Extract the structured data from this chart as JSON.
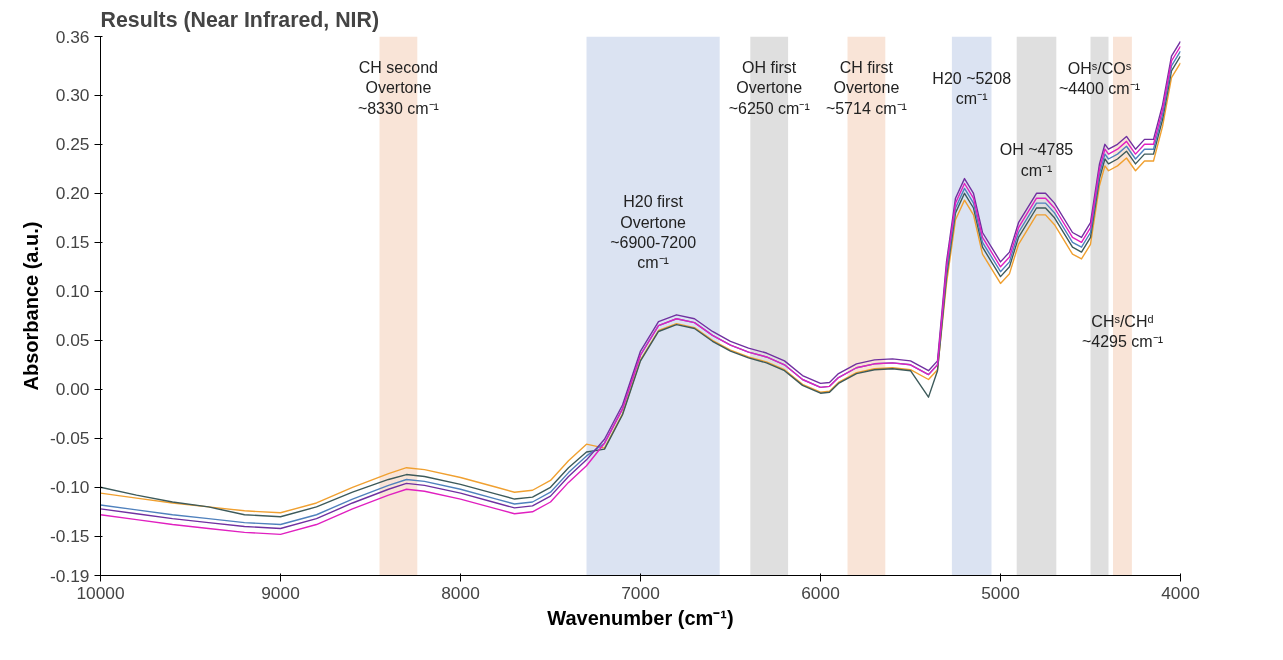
{
  "chart_data": {
    "type": "line",
    "title": "Results (Near Infrared, NIR)",
    "xlabel": "Wavenumber (cm⁻¹)",
    "ylabel": "Absorbance (a.u.)",
    "xlim": [
      10000,
      4000
    ],
    "xticks": [
      10000,
      9000,
      8000,
      7000,
      6000,
      5000,
      4000
    ],
    "ylim": [
      -0.19,
      0.36
    ],
    "yticks": [
      {
        "value": -0.19,
        "label": "-0.19"
      },
      {
        "value": -0.15,
        "label": "-0.15"
      },
      {
        "value": -0.1,
        "label": "-0.10"
      },
      {
        "value": -0.05,
        "label": "-0.05"
      },
      {
        "value": 0,
        "label": "0.00"
      },
      {
        "value": 0.05,
        "label": "0.05"
      },
      {
        "value": 0.1,
        "label": "0.10"
      },
      {
        "value": 0.15,
        "label": "0.15"
      },
      {
        "value": 0.2,
        "label": "0.20"
      },
      {
        "value": 0.25,
        "label": "0.25"
      },
      {
        "value": 0.3,
        "label": "0.30"
      },
      {
        "value": 0.36,
        "label": "0.36"
      }
    ],
    "grid": false,
    "marker": "none",
    "line_style": "solid",
    "x": [
      10000,
      9800,
      9600,
      9400,
      9200,
      9000,
      8800,
      8600,
      8400,
      8300,
      8200,
      8000,
      7800,
      7700,
      7600,
      7500,
      7400,
      7300,
      7200,
      7100,
      7000,
      6900,
      6800,
      6700,
      6600,
      6500,
      6400,
      6300,
      6200,
      6100,
      6000,
      5950,
      5900,
      5800,
      5700,
      5600,
      5500,
      5400,
      5350,
      5300,
      5250,
      5200,
      5150,
      5100,
      5000,
      4950,
      4900,
      4800,
      4750,
      4700,
      4600,
      4550,
      4500,
      4450,
      4420,
      4400,
      4350,
      4300,
      4250,
      4200,
      4150,
      4100,
      4050,
      4000
    ],
    "series": [
      {
        "color": "#f0a030",
        "values": [
          -0.106,
          -0.111,
          -0.116,
          -0.12,
          -0.124,
          -0.126,
          -0.116,
          -0.1,
          -0.086,
          -0.08,
          -0.082,
          -0.09,
          -0.1,
          -0.105,
          -0.103,
          -0.093,
          -0.073,
          -0.056,
          -0.06,
          -0.025,
          0.03,
          0.06,
          0.067,
          0.063,
          0.05,
          0.04,
          0.033,
          0.028,
          0.02,
          0.005,
          -0.003,
          -0.002,
          0.007,
          0.017,
          0.021,
          0.022,
          0.02,
          0.01,
          0.02,
          0.108,
          0.173,
          0.193,
          0.178,
          0.138,
          0.108,
          0.118,
          0.148,
          0.178,
          0.178,
          0.168,
          0.138,
          0.133,
          0.148,
          0.208,
          0.228,
          0.223,
          0.228,
          0.236,
          0.223,
          0.233,
          0.233,
          0.268,
          0.318,
          0.333
        ]
      },
      {
        "color": "#3d5a5a",
        "values": [
          -0.1,
          -0.108,
          -0.115,
          -0.12,
          -0.128,
          -0.13,
          -0.12,
          -0.105,
          -0.092,
          -0.087,
          -0.089,
          -0.097,
          -0.107,
          -0.112,
          -0.11,
          -0.1,
          -0.08,
          -0.064,
          -0.061,
          -0.026,
          0.029,
          0.059,
          0.066,
          0.062,
          0.049,
          0.039,
          0.032,
          0.027,
          0.019,
          0.004,
          -0.004,
          -0.003,
          0.006,
          0.016,
          0.02,
          0.021,
          0.019,
          -0.008,
          0.019,
          0.115,
          0.18,
          0.2,
          0.185,
          0.145,
          0.115,
          0.125,
          0.155,
          0.185,
          0.185,
          0.175,
          0.145,
          0.14,
          0.155,
          0.215,
          0.235,
          0.23,
          0.235,
          0.243,
          0.23,
          0.24,
          0.24,
          0.275,
          0.325,
          0.34
        ]
      },
      {
        "color": "#4f81bd",
        "values": [
          -0.118,
          -0.123,
          -0.128,
          -0.132,
          -0.136,
          -0.138,
          -0.128,
          -0.112,
          -0.098,
          -0.092,
          -0.094,
          -0.102,
          -0.112,
          -0.117,
          -0.115,
          -0.105,
          -0.085,
          -0.068,
          -0.055,
          -0.02,
          0.035,
          0.065,
          0.072,
          0.068,
          0.055,
          0.045,
          0.038,
          0.033,
          0.025,
          0.01,
          0.002,
          0.003,
          0.012,
          0.022,
          0.026,
          0.027,
          0.025,
          0.015,
          0.025,
          0.12,
          0.185,
          0.205,
          0.19,
          0.15,
          0.12,
          0.13,
          0.16,
          0.19,
          0.19,
          0.18,
          0.15,
          0.145,
          0.16,
          0.22,
          0.24,
          0.235,
          0.24,
          0.248,
          0.235,
          0.245,
          0.245,
          0.28,
          0.33,
          0.345
        ]
      },
      {
        "color": "#7030a0",
        "values": [
          -0.122,
          -0.127,
          -0.132,
          -0.136,
          -0.14,
          -0.142,
          -0.132,
          -0.116,
          -0.102,
          -0.096,
          -0.098,
          -0.106,
          -0.116,
          -0.121,
          -0.119,
          -0.109,
          -0.089,
          -0.072,
          -0.051,
          -0.016,
          0.039,
          0.069,
          0.076,
          0.072,
          0.059,
          0.049,
          0.042,
          0.037,
          0.029,
          0.014,
          0.006,
          0.007,
          0.016,
          0.026,
          0.03,
          0.031,
          0.029,
          0.019,
          0.029,
          0.13,
          0.195,
          0.215,
          0.2,
          0.16,
          0.13,
          0.14,
          0.17,
          0.2,
          0.2,
          0.19,
          0.16,
          0.155,
          0.17,
          0.23,
          0.25,
          0.245,
          0.25,
          0.258,
          0.245,
          0.255,
          0.255,
          0.29,
          0.34,
          0.355
        ]
      },
      {
        "color": "#e020c0",
        "values": [
          -0.128,
          -0.133,
          -0.138,
          -0.142,
          -0.146,
          -0.148,
          -0.138,
          -0.122,
          -0.108,
          -0.102,
          -0.104,
          -0.112,
          -0.122,
          -0.127,
          -0.125,
          -0.115,
          -0.095,
          -0.078,
          -0.055,
          -0.02,
          0.035,
          0.065,
          0.072,
          0.068,
          0.055,
          0.045,
          0.038,
          0.033,
          0.025,
          0.01,
          0.002,
          0.003,
          0.012,
          0.022,
          0.026,
          0.027,
          0.025,
          0.015,
          0.025,
          0.125,
          0.19,
          0.21,
          0.195,
          0.155,
          0.125,
          0.135,
          0.165,
          0.195,
          0.195,
          0.185,
          0.155,
          0.15,
          0.165,
          0.225,
          0.245,
          0.24,
          0.245,
          0.253,
          0.24,
          0.25,
          0.25,
          0.285,
          0.335,
          0.35
        ]
      }
    ],
    "bands": [
      {
        "axis": "x",
        "from": 8450,
        "to": 8240,
        "label": "CH second Overtone ~8330 cm⁻¹",
        "color": "#f8e1d3"
      },
      {
        "axis": "x",
        "from": 7300,
        "to": 6560,
        "label": "H20 first Overtone ~6900-7200 cm⁻¹",
        "color": "#d7e0f1"
      },
      {
        "axis": "x",
        "from": 6390,
        "to": 6180,
        "label": "OH first Overtone ~6250 cm⁻¹",
        "color": "#dcdcdc"
      },
      {
        "axis": "x",
        "from": 5850,
        "to": 5640,
        "label": "CH first Overtone ~5714 cm⁻¹",
        "color": "#f8e1d3"
      },
      {
        "axis": "x",
        "from": 5270,
        "to": 5050,
        "label": "H20 ~5208 cm⁻¹",
        "color": "#d7e0f1"
      },
      {
        "axis": "x",
        "from": 4910,
        "to": 4690,
        "label": "OH ~4785 cm⁻¹",
        "color": "#dcdcdc"
      },
      {
        "axis": "x",
        "from": 4500,
        "to": 4400,
        "label": "OHˢ/COˢ ~4400 cm⁻¹",
        "color": "#dcdcdc"
      },
      {
        "axis": "x",
        "from": 4375,
        "to": 4270,
        "label": "CHˢ/CHᵈ ~4295 cm⁻¹",
        "color": "#f8e1d3"
      }
    ]
  }
}
